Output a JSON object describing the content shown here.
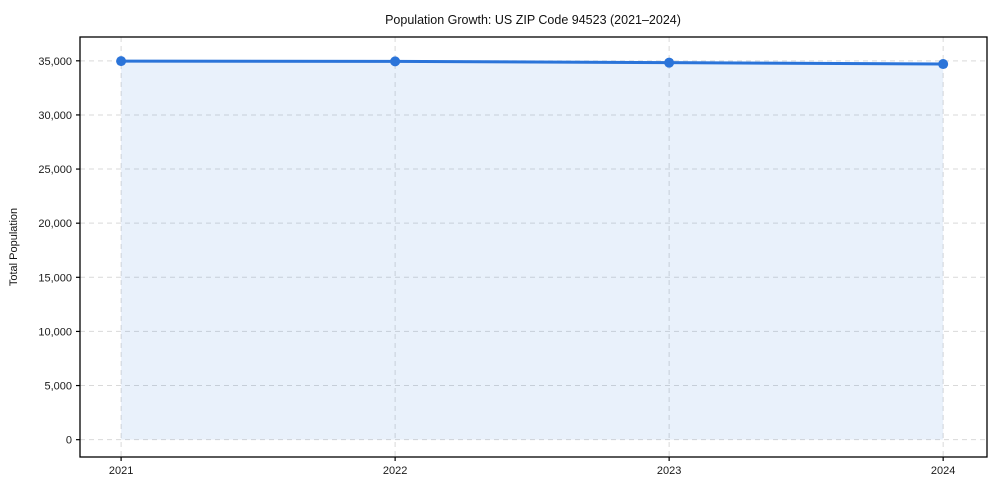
{
  "chart_data": {
    "type": "line",
    "title": "Population Growth: US ZIP Code 94523 (2021–2024)",
    "xlabel": "",
    "ylabel": "Total Population",
    "x": [
      2021,
      2022,
      2023,
      2024
    ],
    "x_tick_labels": [
      "2021",
      "2022",
      "2023",
      "2024"
    ],
    "series": [
      {
        "name": "Total Population",
        "values": [
          34970,
          34950,
          34830,
          34700
        ]
      }
    ],
    "y_ticks": [
      0,
      5000,
      10000,
      15000,
      20000,
      25000,
      30000,
      35000
    ],
    "y_tick_labels": [
      "0",
      "5,000",
      "10,000",
      "15,000",
      "20,000",
      "25,000",
      "30,000",
      "35,000"
    ],
    "xlim": [
      2020.85,
      2024.16
    ],
    "ylim": [
      -1600,
      37200
    ],
    "grid": true,
    "grid_style": "dashed",
    "legend_position": "none",
    "line_color": "#2b74d9",
    "marker": "circle",
    "area_fill": true,
    "area_opacity": 0.1,
    "fill_baseline": 0
  }
}
